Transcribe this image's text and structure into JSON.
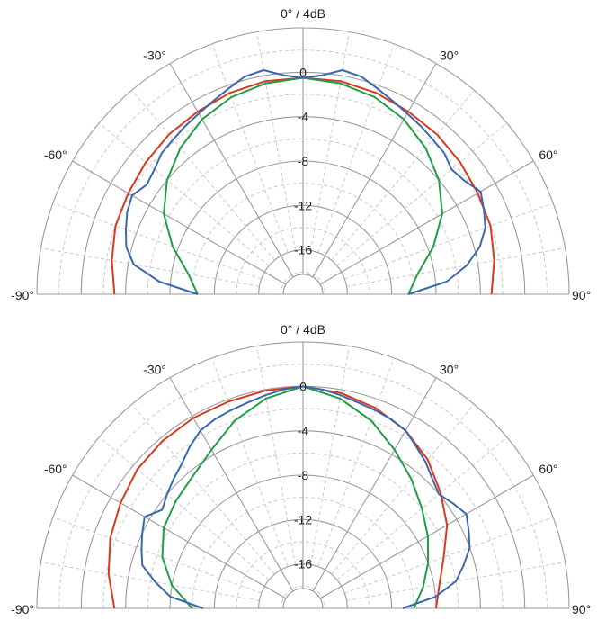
{
  "colors": {
    "red": "#d9381e",
    "green": "#1f9e46",
    "blue": "#3a68ae"
  },
  "chart_data": [
    {
      "type": "polar",
      "title": "0° / 4dB",
      "angle_labels": [
        "-90°",
        "-60°",
        "-30°",
        "30°",
        "60°",
        "90°"
      ],
      "radial_labels": [
        "0",
        "-4",
        "-8",
        "-12",
        "-16"
      ],
      "rlim_db": [
        -20,
        4
      ],
      "angle_range_deg": [
        -90,
        90
      ],
      "series": [
        {
          "color": "red",
          "angles_deg": [
            -90,
            -80,
            -70,
            -60,
            -50,
            -40,
            -30,
            -20,
            -10,
            0,
            10,
            20,
            30,
            40,
            50,
            60,
            70,
            80,
            90
          ],
          "values_db": [
            -3,
            -2.5,
            -2,
            -1.8,
            -1.5,
            -1.2,
            -1,
            -0.7,
            -0.5,
            -0.5,
            -0.5,
            -0.7,
            -1,
            -1.2,
            -1.5,
            -1.8,
            -2,
            -2.5,
            -3
          ]
        },
        {
          "color": "green",
          "angles_deg": [
            -90,
            -80,
            -70,
            -60,
            -50,
            -40,
            -30,
            -20,
            -10,
            0,
            10,
            20,
            30,
            40,
            50,
            60,
            70,
            80,
            90
          ],
          "values_db": [
            -10.5,
            -9.5,
            -7.5,
            -5.5,
            -4,
            -2.8,
            -1.8,
            -1.1,
            -0.7,
            -0.5,
            -0.7,
            -1.1,
            -1.8,
            -2.8,
            -4,
            -5.5,
            -7.5,
            -9.5,
            -10.5
          ]
        },
        {
          "color": "blue",
          "angles_deg": [
            -90,
            -85,
            -80,
            -75,
            -70,
            -65,
            -60,
            -55,
            -50,
            -45,
            -40,
            -35,
            -30,
            -25,
            -20,
            -15,
            -10,
            -5,
            0,
            5,
            10,
            15,
            20,
            25,
            30,
            35,
            40,
            45,
            50,
            55,
            60,
            65,
            70,
            75,
            80,
            85,
            90
          ],
          "values_db": [
            -10.5,
            -7,
            -4.5,
            -3.5,
            -3,
            -2.5,
            -2.2,
            -2.8,
            -2.5,
            -2,
            -1.8,
            -1.5,
            -1.2,
            -0.8,
            -0.3,
            0.3,
            0.5,
            -0.2,
            -0.5,
            -0.2,
            0.5,
            0.3,
            -0.3,
            -0.8,
            -1.2,
            -1.5,
            -1.8,
            -2,
            -2.5,
            -2.2,
            -1.5,
            -2,
            -2.5,
            -3.5,
            -5,
            -7,
            -10.5
          ]
        }
      ]
    },
    {
      "type": "polar",
      "title": "0° / 4dB",
      "angle_labels": [
        "-90°",
        "-60°",
        "-30°",
        "30°",
        "60°",
        "90°"
      ],
      "radial_labels": [
        "0",
        "-4",
        "-8",
        "-12",
        "-16"
      ],
      "rlim_db": [
        -20,
        4
      ],
      "angle_range_deg": [
        -90,
        90
      ],
      "series": [
        {
          "color": "red",
          "angles_deg": [
            -90,
            -80,
            -70,
            -60,
            -50,
            -40,
            -30,
            -20,
            -10,
            0,
            10,
            20,
            30,
            40,
            50,
            60,
            70,
            80,
            90
          ],
          "values_db": [
            -3,
            -2.2,
            -1.5,
            -1,
            -0.5,
            -0.3,
            -0.2,
            -0.2,
            -0.1,
            0,
            -0.3,
            -0.8,
            -1.5,
            -2.5,
            -3.8,
            -5,
            -6.5,
            -7.5,
            -8
          ]
        },
        {
          "color": "green",
          "angles_deg": [
            -90,
            -80,
            -70,
            -60,
            -50,
            -40,
            -30,
            -20,
            -10,
            0,
            10,
            20,
            30,
            40,
            50,
            60,
            70,
            80,
            90
          ],
          "values_db": [
            -10,
            -8,
            -6.5,
            -5.5,
            -5,
            -4.5,
            -3.5,
            -2,
            -0.8,
            0,
            -0.8,
            -2,
            -3.5,
            -4.8,
            -6,
            -7,
            -8,
            -9,
            -10
          ]
        },
        {
          "color": "blue",
          "angles_deg": [
            -90,
            -85,
            -80,
            -75,
            -70,
            -65,
            -60,
            -55,
            -50,
            -45,
            -40,
            -35,
            -30,
            -25,
            -20,
            -15,
            -10,
            -5,
            0,
            5,
            10,
            15,
            20,
            25,
            30,
            35,
            40,
            45,
            50,
            55,
            60,
            65,
            70,
            75,
            80,
            85,
            90
          ],
          "values_db": [
            -11,
            -8,
            -6.5,
            -5,
            -4.5,
            -4,
            -3.5,
            -4.5,
            -4,
            -3.5,
            -3,
            -2.2,
            -1.5,
            -1.2,
            -1,
            -0.8,
            -0.5,
            -0.2,
            0,
            -0.2,
            -0.5,
            -0.8,
            -1,
            -1.2,
            -1.5,
            -2.2,
            -2.8,
            -3.5,
            -4,
            -3.5,
            -3,
            -3.5,
            -4,
            -5,
            -6,
            -8,
            -11
          ]
        }
      ]
    }
  ]
}
